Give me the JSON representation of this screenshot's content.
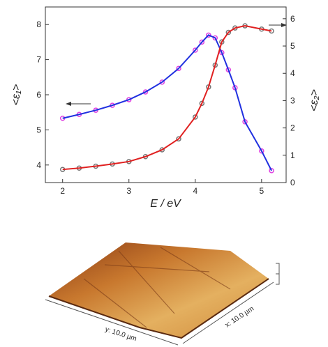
{
  "chart_data": {
    "type": "line",
    "x_label": "E / eV",
    "y_label": "<ε₁>",
    "y2_label": "<ε₂>",
    "xlim": [
      1.74,
      5.37
    ],
    "xticks": [
      2,
      3,
      4,
      5
    ],
    "ylim": [
      3.5,
      8.5
    ],
    "yticks": [
      4,
      5,
      6,
      7,
      8
    ],
    "y2lim": [
      0,
      6.43
    ],
    "y2ticks": [
      0,
      1,
      2,
      3,
      4,
      5,
      6
    ],
    "x": [
      2,
      2.25,
      2.5,
      2.75,
      3,
      3.25,
      3.5,
      3.75,
      4,
      4.1,
      4.2,
      4.3,
      4.4,
      4.5,
      4.6,
      4.75,
      5,
      5.15
    ],
    "series": [
      {
        "color": "#e040e0",
        "marker": true,
        "values": [
          5.33,
          5.44,
          5.56,
          5.7,
          5.86,
          6.08,
          6.36,
          6.75,
          7.27,
          7.5,
          7.7,
          7.62,
          7.2,
          6.71,
          6.2,
          5.23,
          4.4,
          3.84
        ]
      },
      {
        "color": "#2030e0",
        "marker": false,
        "values": [
          5.33,
          5.44,
          5.56,
          5.7,
          5.86,
          6.08,
          6.36,
          6.75,
          7.27,
          7.5,
          7.7,
          7.62,
          7.2,
          6.71,
          6.2,
          5.23,
          4.4,
          3.84
        ]
      },
      {
        "color": "#777777",
        "marker": true,
        "axis": "y2",
        "values": [
          0.48,
          0.53,
          0.6,
          0.68,
          0.77,
          0.95,
          1.2,
          1.6,
          2.4,
          2.9,
          3.5,
          4.3,
          5.15,
          5.5,
          5.66,
          5.74,
          5.62,
          5.55
        ]
      },
      {
        "color": "#e02020",
        "marker": false,
        "axis": "y2",
        "values": [
          0.48,
          0.53,
          0.6,
          0.68,
          0.77,
          0.95,
          1.2,
          1.6,
          2.4,
          2.9,
          3.5,
          4.3,
          5.15,
          5.5,
          5.66,
          5.74,
          5.62,
          5.55
        ]
      }
    ]
  },
  "afm_image": {
    "x_label": "x: 10.0 µm",
    "y_label": "y: 10.0 µm"
  }
}
